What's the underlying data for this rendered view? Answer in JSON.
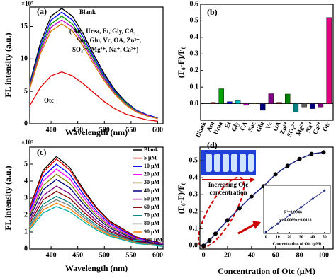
{
  "chart_data": [
    {
      "type": "line",
      "panel_label": "(a)",
      "x_label": "Wavelength (nm)",
      "y_label": "FL intensity (a.u.)",
      "axis_multiplier": "×10⁵",
      "x": [
        360,
        380,
        400,
        420,
        440,
        460,
        480,
        500,
        520,
        540,
        560,
        580,
        600
      ],
      "xlim": [
        360,
        610
      ],
      "ylim": [
        0,
        18
      ],
      "xticks": [
        400,
        450,
        500,
        550,
        600
      ],
      "yticks": [
        0,
        5,
        10,
        15
      ],
      "series": [
        {
          "color": "#000000",
          "values": [
            6.2,
            12.5,
            16.6,
            17.8,
            16.6,
            13.9,
            10.7,
            7.7,
            5.2,
            3.4,
            2.1,
            1.4,
            0.9
          ]
        },
        {
          "color": "#0000ff",
          "values": [
            6.0,
            12.0,
            16.0,
            17.2,
            16.0,
            13.4,
            10.3,
            7.4,
            5.0,
            3.3,
            2.1,
            1.4,
            0.9
          ]
        },
        {
          "color": "#00a000",
          "values": [
            5.8,
            11.6,
            15.4,
            16.6,
            15.4,
            12.9,
            10.0,
            7.1,
            4.8,
            3.2,
            2.0,
            1.3,
            0.8
          ]
        },
        {
          "color": "#c000c0",
          "values": [
            5.6,
            11.2,
            14.9,
            16.0,
            14.9,
            12.5,
            9.6,
            6.9,
            4.6,
            3.0,
            1.9,
            1.3,
            0.8
          ]
        },
        {
          "color": "#d08000",
          "values": [
            5.4,
            10.8,
            14.3,
            15.4,
            14.3,
            12.0,
            9.2,
            6.6,
            4.5,
            2.9,
            1.8,
            1.2,
            0.8
          ]
        },
        {
          "color": "#e00000",
          "values": [
            2.8,
            5.6,
            7.4,
            8.0,
            7.4,
            6.2,
            4.8,
            3.4,
            2.3,
            1.5,
            1.0,
            0.6,
            0.4
          ]
        }
      ],
      "annotations": [
        "Blank",
        "( Am, Urea, Et, Gly, CA,",
        "Suc,  Glu, Vc, OA, Zn²⁺,",
        "SO₄²⁻, Mg²⁺, Na⁺, Ca²⁺)",
        "Otc"
      ]
    },
    {
      "type": "bar",
      "panel_label": "(b)",
      "y_label": "(F₀-F)/F₀",
      "categories": [
        "Blank",
        "Am",
        "Urea",
        "Et",
        "Gly",
        "CA",
        "Suc",
        "Glu",
        "Vc",
        "OA",
        "Zn²⁺",
        "SO₄²⁻",
        "Mg²⁺",
        "Na⁺",
        "Ca²⁺",
        "Otc"
      ],
      "values": [
        0.0,
        0.008,
        0.09,
        0.012,
        0.018,
        -0.01,
        0.004,
        -0.04,
        0.06,
        0.008,
        0.058,
        -0.05,
        -0.02,
        -0.03,
        -0.02,
        0.52
      ],
      "colors": [
        "#000000",
        "#e00000",
        "#00a000",
        "#0000ff",
        "#00c0c0",
        "#c000c0",
        "#808000",
        "#000080",
        "#800080",
        "#800000",
        "#008000",
        "#008080",
        "#606060",
        "#000080",
        "#800080",
        "#e0007f"
      ],
      "ylim": [
        -0.1,
        0.6
      ],
      "yticks": [
        {
          "value": 0,
          "label": "0.0"
        },
        0.1,
        0.2,
        0.3,
        0.4,
        0.5,
        0.6
      ]
    },
    {
      "type": "line",
      "panel_label": "(c)",
      "x_label": "Wavelength (nm)",
      "y_label": "FL intensity (a.u.)",
      "axis_multiplier": "×10⁵",
      "x": [
        360,
        385,
        410,
        435,
        460,
        485,
        510,
        560,
        610
      ],
      "xlim": [
        360,
        610
      ],
      "ylim": [
        0,
        6
      ],
      "xticks": [
        400,
        450,
        500,
        550,
        600
      ],
      "yticks": [
        0,
        1,
        2,
        3,
        4,
        5
      ],
      "series": [
        {
          "name": "Blank",
          "color": "#000000",
          "values": [
            2.45,
            4.63,
            5.45,
            4.8,
            3.54,
            2.45,
            1.64,
            0.71,
            0.33
          ]
        },
        {
          "name": "5 μM",
          "color": "#e00000",
          "values": [
            2.39,
            4.51,
            5.3,
            4.66,
            3.45,
            2.39,
            1.59,
            0.69,
            0.32
          ]
        },
        {
          "name": "10 μM",
          "color": "#0000ff",
          "values": [
            2.25,
            4.25,
            5.0,
            4.4,
            3.25,
            2.25,
            1.5,
            0.65,
            0.3
          ]
        },
        {
          "name": "20 μM",
          "color": "#ff00ff",
          "values": [
            2.12,
            4.0,
            4.7,
            4.14,
            3.06,
            2.12,
            1.41,
            0.61,
            0.28
          ]
        },
        {
          "name": "30 μM",
          "color": "#808000",
          "values": [
            1.98,
            3.74,
            4.4,
            3.87,
            2.86,
            1.98,
            1.32,
            0.57,
            0.26
          ]
        },
        {
          "name": "40 μM",
          "color": "#000080",
          "values": [
            1.85,
            3.49,
            4.1,
            3.61,
            2.67,
            1.85,
            1.23,
            0.53,
            0.25
          ]
        },
        {
          "name": "50 μM",
          "color": "#800080",
          "values": [
            1.67,
            3.15,
            3.7,
            3.26,
            2.41,
            1.67,
            1.11,
            0.48,
            0.22
          ]
        },
        {
          "name": "60 μM",
          "color": "#800000",
          "values": [
            1.53,
            2.89,
            3.4,
            2.99,
            2.21,
            1.53,
            1.02,
            0.44,
            0.2
          ]
        },
        {
          "name": "70 μM",
          "color": "#008080",
          "values": [
            1.4,
            2.64,
            3.1,
            2.73,
            2.02,
            1.4,
            0.93,
            0.4,
            0.19
          ]
        },
        {
          "name": "80 μM",
          "color": "#808080",
          "values": [
            1.31,
            2.47,
            2.9,
            2.55,
            1.89,
            1.31,
            0.87,
            0.38,
            0.17
          ]
        },
        {
          "name": "90 μM",
          "color": "#ff8000",
          "values": [
            1.22,
            2.3,
            2.7,
            2.38,
            1.76,
            1.22,
            0.81,
            0.35,
            0.16
          ]
        },
        {
          "name": "100 μM",
          "color": "#00b0b0",
          "values": [
            1.13,
            2.13,
            2.5,
            2.2,
            1.63,
            1.13,
            0.75,
            0.33,
            0.15
          ]
        }
      ]
    },
    {
      "type": "scatter",
      "panel_label": "(d)",
      "x_label": "Concentration of Otc (μM)",
      "y_label": "(F₀-F)/F₀",
      "x": [
        0,
        5,
        10,
        20,
        30,
        40,
        50,
        60,
        70,
        80,
        90,
        100
      ],
      "xlim": [
        -3,
        108
      ],
      "ylim": [
        -0.02,
        0.58
      ],
      "xticks": [
        0,
        20,
        40,
        60,
        80,
        100
      ],
      "yticks": [
        {
          "value": 0,
          "label": "0.0"
        },
        0.1,
        0.2,
        0.3,
        0.4,
        0.5
      ],
      "series": [
        {
          "color": "#1a237e",
          "marker_color": "#000000",
          "values": [
            0.0,
            0.03,
            0.07,
            0.15,
            0.22,
            0.29,
            0.35,
            0.42,
            0.47,
            0.51,
            0.54,
            0.55
          ]
        }
      ],
      "annotations": [
        "Increasing Otc",
        "concentration"
      ]
    },
    {
      "type": "scatter",
      "x_label": "Concentration of Otc (μM)",
      "x": [
        0,
        5,
        10,
        20,
        30,
        40,
        50
      ],
      "xlim": [
        -2,
        55
      ],
      "ylim": [
        0,
        0.4
      ],
      "xticks": [
        0,
        10,
        20,
        30,
        40,
        50
      ],
      "series": [
        {
          "color": "#1a237e",
          "marker_color": "#1a237e",
          "values": [
            0.012,
            0.046,
            0.081,
            0.15,
            0.219,
            0.288,
            0.357
          ]
        }
      ],
      "annotations": [
        "R²=0.9946",
        "y=0.0069x+0.0118"
      ]
    }
  ]
}
